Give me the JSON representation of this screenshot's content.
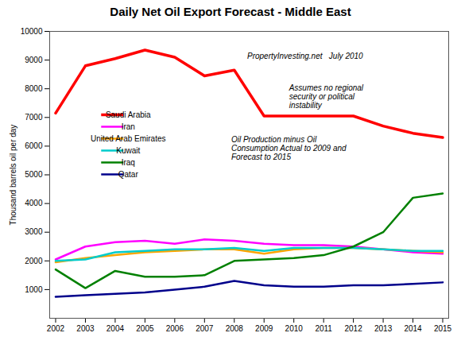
{
  "chart_data": {
    "type": "line",
    "title": "Daily Net Oil Export Forecast  -  Middle East",
    "ylabel": "Thousand barrels oil per day",
    "x": [
      2002,
      2003,
      2004,
      2005,
      2006,
      2007,
      2008,
      2009,
      2010,
      2011,
      2012,
      2013,
      2014,
      2015
    ],
    "xlim": [
      2001.8,
      2015.2
    ],
    "xticks": [
      2002,
      2003,
      2004,
      2005,
      2006,
      2007,
      2008,
      2009,
      2010,
      2011,
      2012,
      2013,
      2014,
      2015
    ],
    "ylim": [
      0,
      10000
    ],
    "yticks": [
      1000,
      2000,
      3000,
      4000,
      5000,
      6000,
      7000,
      8000,
      9000,
      10000
    ],
    "series": [
      {
        "name": "Saudi Arabia",
        "color": "#ff0000",
        "values": [
          7150,
          8800,
          9050,
          9350,
          9100,
          8450,
          8650,
          7050,
          7050,
          7050,
          7050,
          6700,
          6450,
          6300
        ]
      },
      {
        "name": "Iran",
        "color": "#ff00ff",
        "values": [
          2050,
          2500,
          2650,
          2700,
          2600,
          2750,
          2700,
          2600,
          2550,
          2550,
          2500,
          2400,
          2300,
          2250
        ]
      },
      {
        "name": "United Arab Emirates",
        "color": "#ffa500",
        "values": [
          1950,
          2100,
          2200,
          2300,
          2350,
          2400,
          2400,
          2250,
          2400,
          2450,
          2450,
          2400,
          2350,
          2300
        ]
      },
      {
        "name": "Kuwait",
        "color": "#00cccc",
        "values": [
          2000,
          2050,
          2300,
          2350,
          2400,
          2400,
          2450,
          2350,
          2450,
          2450,
          2450,
          2400,
          2350,
          2350
        ]
      },
      {
        "name": "Iraq",
        "color": "#008000",
        "values": [
          1700,
          1050,
          1650,
          1450,
          1450,
          1500,
          2000,
          2050,
          2100,
          2200,
          2500,
          3000,
          4200,
          4350
        ]
      },
      {
        "name": "Qatar",
        "color": "#00008b",
        "values": [
          750,
          800,
          850,
          900,
          1000,
          1100,
          1300,
          1150,
          1100,
          1100,
          1150,
          1150,
          1200,
          1250
        ]
      }
    ],
    "annotations": [
      "PropertyInvesting.net   July 2010",
      "Assumes no regional\nsecurity or political\ninstability",
      "Oil Production minus Oil\nConsumption Actual to 2009 and\nForecast to 2015"
    ],
    "legend": "upper left",
    "grid": false
  }
}
